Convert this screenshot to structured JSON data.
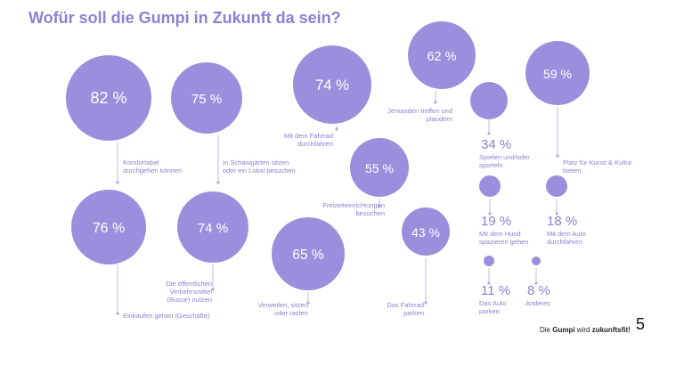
{
  "title": "Wofür soll die Gumpi in Zukunft da sein?",
  "chart_data": {
    "type": "bubble",
    "title": "Wofür soll die Gumpi in Zukunft da sein?",
    "items": [
      {
        "label": "Komfortabel durchgehen können",
        "value": 82,
        "text": "82 %"
      },
      {
        "label": "In Schanigärten sitzen oder ein Lokal besuchen",
        "value": 75,
        "text": "75 %"
      },
      {
        "label": "Mit dem Fahrrad durchfahren",
        "value": 74,
        "text": "74 %"
      },
      {
        "label": "Jemanden treffen und plaudern",
        "value": 62,
        "text": "62 %"
      },
      {
        "label": "Platz für Kunst & Kultur bieten",
        "value": 59,
        "text": "59 %"
      },
      {
        "label": "Freizeiteinrichtungen besuchen",
        "value": 55,
        "text": "55 %"
      },
      {
        "label": "Spielen und/oder sporteln",
        "value": 34,
        "text": "34 %"
      },
      {
        "label": "Einkaufen gehen (Geschäfte)",
        "value": 76,
        "text": "76 %"
      },
      {
        "label": "Die öffentlichen Verkehrsmittel (Busse) nutzen",
        "value": 74,
        "text": "74 %"
      },
      {
        "label": "Verweilen, sitzen oder rasten",
        "value": 65,
        "text": "65 %"
      },
      {
        "label": "Das Fahrrad parken",
        "value": 43,
        "text": "43 %"
      },
      {
        "label": "Mit dem Hund spazieren gehen",
        "value": 19,
        "text": "19 %"
      },
      {
        "label": "Mit dem Auto durchfahren",
        "value": 18,
        "text": "18 %"
      },
      {
        "label": "Das Auto parken",
        "value": 11,
        "text": "11 %"
      },
      {
        "label": "Anderes",
        "value": 8,
        "text": "8 %"
      }
    ]
  },
  "footer": {
    "pre": "Die ",
    "gumpi": "Gumpi",
    "mid": " wird ",
    "bold": "zukunftsfit!"
  },
  "page_number": "5",
  "colors": {
    "bubble": "#9b8fdd",
    "text": "#8b81d4",
    "line": "#b3aae6"
  }
}
